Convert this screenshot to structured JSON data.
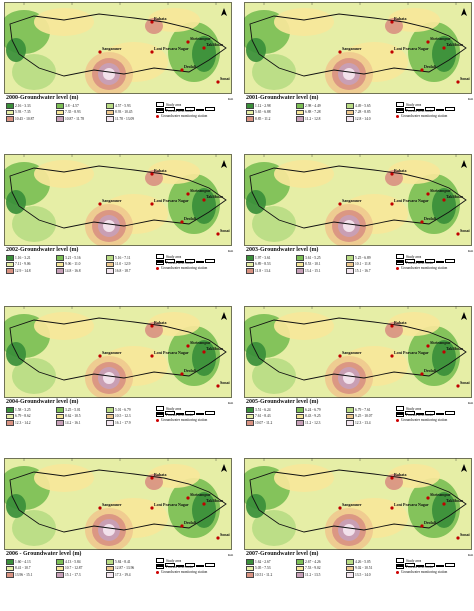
{
  "places": {
    "rahata": "Rahata",
    "shrirampur": "Shrirampur",
    "takliboan": "Takliboan",
    "sangamner": "Sangamner",
    "loni": "Loni Pravara Nagar",
    "deolali": "Deolali",
    "sonai": "Sonai"
  },
  "legend_common": {
    "study_area": "Study area",
    "basin": "Pravara river basin",
    "station": "Groundwater monitoring station",
    "km": "Km"
  },
  "panels": [
    {
      "title": "2000-Groundwater level (m)",
      "ranges": [
        "2.16 - 3.33",
        "3.8 - 4.57",
        "4.57 - 5.93",
        "5.93 - 7.35",
        "7.35 - 8.93",
        "8.93 - 10.45",
        "10.45 - 10.87",
        "10.87 - 11.78",
        "11.78 - 13.09"
      ],
      "colors": [
        "#3a8f3a",
        "#7cbf55",
        "#b9dc84",
        "#e6eea6",
        "#f7e79a",
        "#efc98f",
        "#d99282",
        "#c8a0b8",
        "#f5e6f0"
      ]
    },
    {
      "title": "2001-Groundwater level (m)",
      "ranges": [
        "1.12 - 2.98",
        "2.98 - 4.49",
        "4.49 - 5.65",
        "5.65 - 6.88",
        "6.88 - 7.28",
        "7.28 - 8.85",
        "8.85 - 11.2",
        "11.2 - 12.8",
        "12.8 - 14.0"
      ],
      "colors": [
        "#3a8f3a",
        "#7cbf55",
        "#b9dc84",
        "#e6eea6",
        "#f7e79a",
        "#efc98f",
        "#d99282",
        "#c8a0b8",
        "#f5e6f0"
      ]
    },
    {
      "title": "2002-Groundwater level (m)",
      "ranges": [
        "1.16 - 3.21",
        "3.21 - 5.16",
        "5.16 - 7.11",
        "7.11 - 9.06",
        "9.06 - 11.0",
        "11.0 - 12.9",
        "12.9 - 14.8",
        "14.8 - 16.8",
        "16.8 - 18.7"
      ],
      "colors": [
        "#3a8f3a",
        "#7cbf55",
        "#b9dc84",
        "#e6eea6",
        "#f7e79a",
        "#efc98f",
        "#d99282",
        "#c8a0b8",
        "#f5e6f0"
      ]
    },
    {
      "title": "2003-Groundwater level (m)",
      "ranges": [
        "1.97 - 3.61",
        "3.61 - 5.25",
        "5.25 - 6.89",
        "6.89 - 8.53",
        "8.53 - 10.1",
        "10.1 - 11.8",
        "11.8 - 13.4",
        "13.4 - 15.1",
        "15.1 - 16.7"
      ],
      "colors": [
        "#3a8f3a",
        "#7cbf55",
        "#b9dc84",
        "#e6eea6",
        "#f7e79a",
        "#efc98f",
        "#d99282",
        "#c8a0b8",
        "#f5e6f0"
      ]
    },
    {
      "title": "2004-Groundwater level (m)",
      "ranges": [
        "1.58 - 3.25",
        "3.25 - 5.01",
        "5.01 - 6.79",
        "6.79 - 8.62",
        "8.62 - 10.5",
        "10.5 - 12.3",
        "12.3 - 14.2",
        "14.2 - 16.1",
        "16.1 - 17.9"
      ],
      "colors": [
        "#3a8f3a",
        "#7cbf55",
        "#b9dc84",
        "#e6eea6",
        "#f7e79a",
        "#efc98f",
        "#d99282",
        "#c8a0b8",
        "#f5e6f0"
      ]
    },
    {
      "title": "2005-Groundwater level (m)",
      "ranges": [
        "3.51 - 6.24",
        "6.24 - 6.79",
        "6.79 - 7.61",
        "7.61 - 8.43",
        "8.43 - 9.25",
        "9.25 - 10.07",
        "10.07 - 11.2",
        "11.2 - 12.3",
        "12.3 - 13.4"
      ],
      "colors": [
        "#3a8f3a",
        "#7cbf55",
        "#b9dc84",
        "#e6eea6",
        "#f7e79a",
        "#efc98f",
        "#d99282",
        "#c8a0b8",
        "#f5e6f0"
      ]
    },
    {
      "title": "2006 - Groundwater level (m)",
      "ranges": [
        "1.60 - 4.13",
        "4.13 - 5.84",
        "5.84 - 8.41",
        "8.41 - 10.7",
        "10.7 - 12.87",
        "12.87 - 13.96",
        "13.96 - 15.1",
        "15.1 - 17.3",
        "17.3 - 19.4"
      ],
      "colors": [
        "#3a8f3a",
        "#7cbf55",
        "#b9dc84",
        "#e6eea6",
        "#f7e79a",
        "#efc98f",
        "#d99282",
        "#c8a0b8",
        "#f5e6f0"
      ]
    },
    {
      "title": "2007-Groundwater level (m)",
      "ranges": [
        "1.62 - 2.67",
        "2.67 - 4.26",
        "4.26 - 5.05",
        "5.05 - 7.53",
        "7.53 - 9.02",
        "9.02 - 10.51",
        "10.51 - 11.2",
        "11.2 - 13.5",
        "13.5 - 14.0"
      ],
      "colors": [
        "#3a8f3a",
        "#7cbf55",
        "#b9dc84",
        "#e6eea6",
        "#f7e79a",
        "#efc98f",
        "#d99282",
        "#c8a0b8",
        "#f5e6f0"
      ]
    }
  ]
}
